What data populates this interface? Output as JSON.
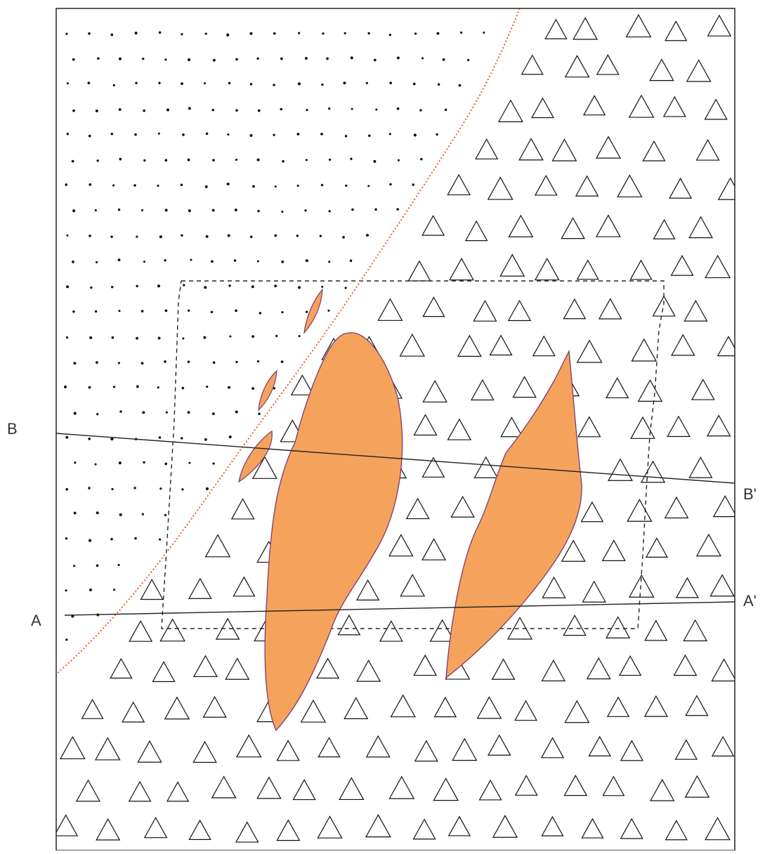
{
  "map": {
    "section_lines": [
      {
        "id": "B-B'",
        "start_label": "B",
        "end_label": "B'"
      },
      {
        "id": "A-A'",
        "start_label": "A",
        "end_label": "A'"
      }
    ]
  },
  "colors": {
    "ore_body_fill": "#f5a25c",
    "ore_body_stroke": "#7a3b6e",
    "fault_line": "#e8501e",
    "frame": "#222222",
    "symbols": "#111111"
  },
  "symbols": {
    "dotted_unit": "dot-pattern",
    "breccia_unit": "triangle-pattern"
  }
}
